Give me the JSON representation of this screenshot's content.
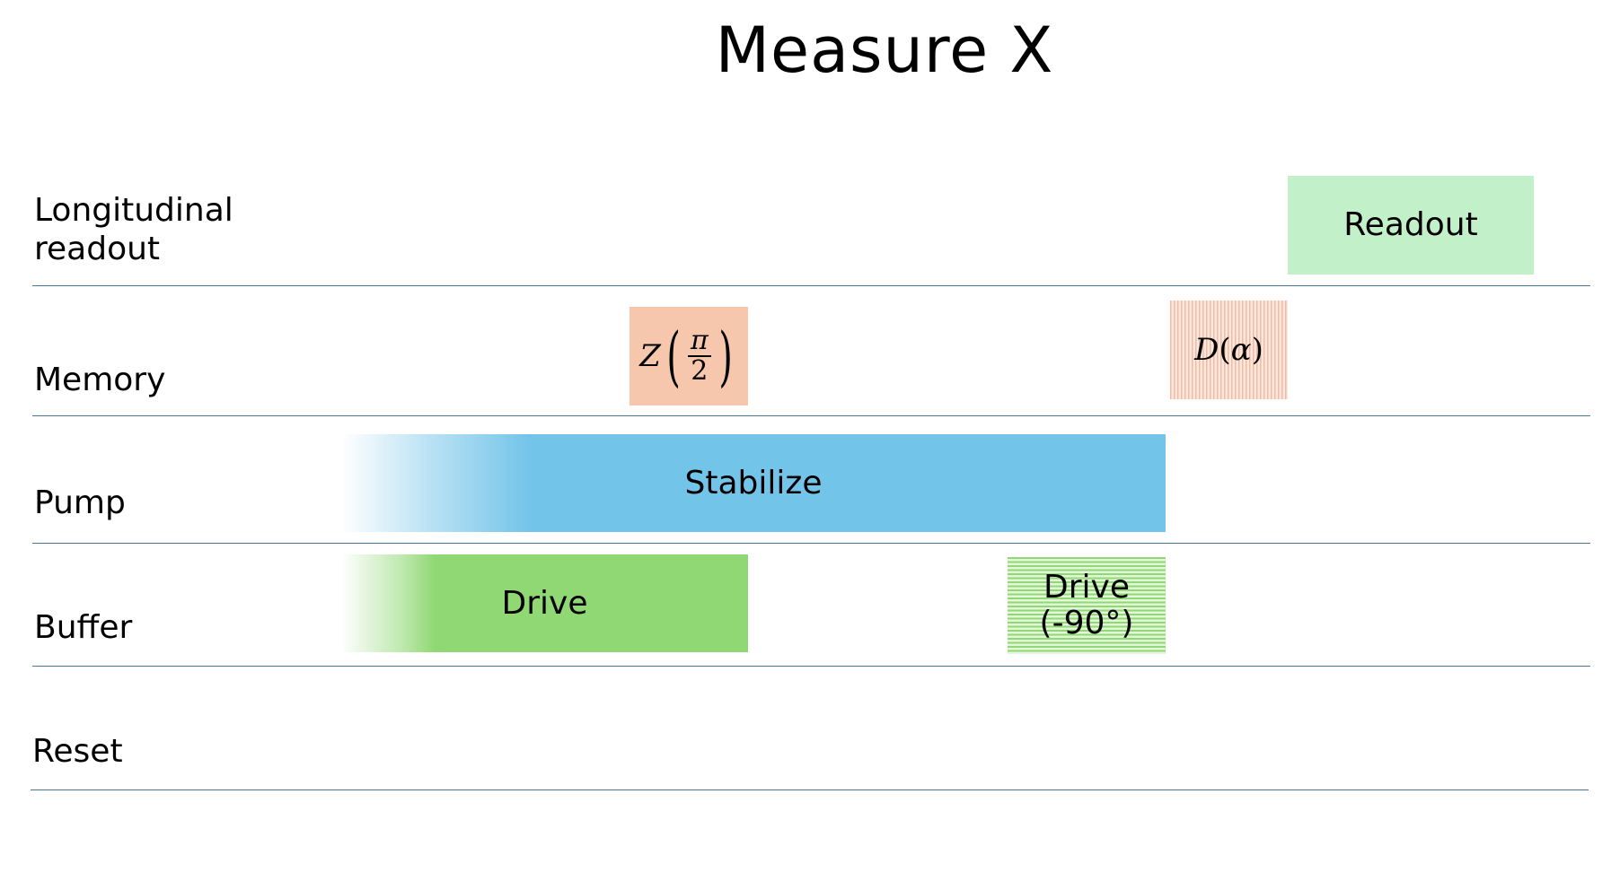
{
  "title": "Measure X",
  "rows": {
    "longitudinal_readout": "Longitudinal\nreadout",
    "memory": "Memory",
    "pump": "Pump",
    "buffer": "Buffer",
    "reset": "Reset"
  },
  "blocks": {
    "readout": {
      "label": "Readout",
      "color": "#c2f0c8"
    },
    "z_gate": {
      "operator": "Z",
      "numerator": "π",
      "denominator": "2",
      "color": "#f6c6ad"
    },
    "displacement": {
      "operator": "D",
      "argument": "α",
      "color": "#f6c6ad"
    },
    "stabilize": {
      "label": "Stabilize",
      "color": "#73c4e9"
    },
    "drive": {
      "label": "Drive",
      "color": "#8fd873"
    },
    "drive_90": {
      "label": "Drive\n(-90°)",
      "color": "#8fd873"
    }
  }
}
